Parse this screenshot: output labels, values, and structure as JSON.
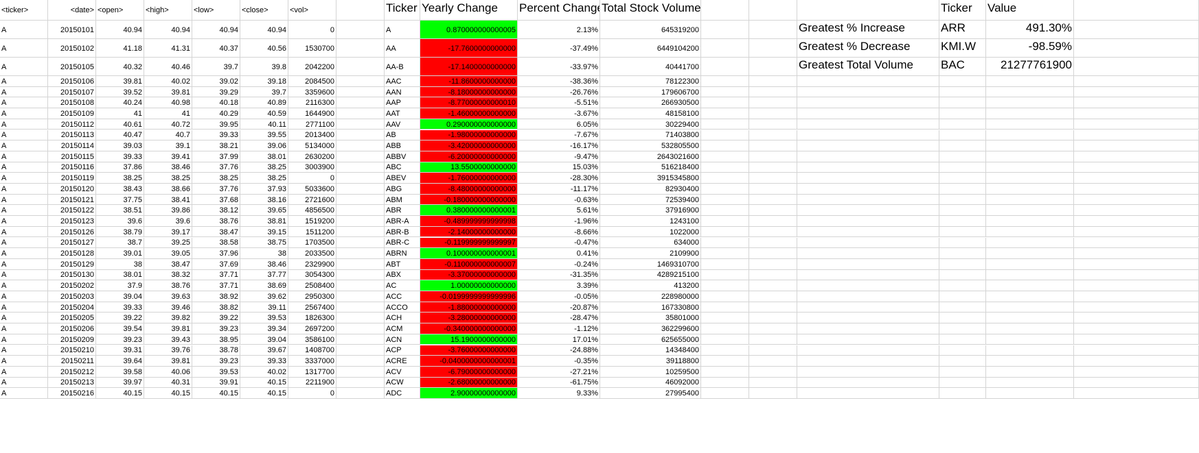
{
  "raw_data": {
    "headers": [
      "<ticker>",
      "<date>",
      "<open>",
      "<high>",
      "<low>",
      "<close>",
      "<vol>"
    ],
    "rows": [
      [
        "A",
        "20150101",
        "40.94",
        "40.94",
        "40.94",
        "40.94",
        "0"
      ],
      [
        "A",
        "20150102",
        "41.18",
        "41.31",
        "40.37",
        "40.56",
        "1530700"
      ],
      [
        "A",
        "20150105",
        "40.32",
        "40.46",
        "39.7",
        "39.8",
        "2042200"
      ],
      [
        "A",
        "20150106",
        "39.81",
        "40.02",
        "39.02",
        "39.18",
        "2084500"
      ],
      [
        "A",
        "20150107",
        "39.52",
        "39.81",
        "39.29",
        "39.7",
        "3359600"
      ],
      [
        "A",
        "20150108",
        "40.24",
        "40.98",
        "40.18",
        "40.89",
        "2116300"
      ],
      [
        "A",
        "20150109",
        "41",
        "41",
        "40.29",
        "40.59",
        "1644900"
      ],
      [
        "A",
        "20150112",
        "40.61",
        "40.72",
        "39.95",
        "40.11",
        "2771100"
      ],
      [
        "A",
        "20150113",
        "40.47",
        "40.7",
        "39.33",
        "39.55",
        "2013400"
      ],
      [
        "A",
        "20150114",
        "39.03",
        "39.1",
        "38.21",
        "39.06",
        "5134000"
      ],
      [
        "A",
        "20150115",
        "39.33",
        "39.41",
        "37.99",
        "38.01",
        "2630200"
      ],
      [
        "A",
        "20150116",
        "37.86",
        "38.46",
        "37.76",
        "38.25",
        "3003900"
      ],
      [
        "A",
        "20150119",
        "38.25",
        "38.25",
        "38.25",
        "38.25",
        "0"
      ],
      [
        "A",
        "20150120",
        "38.43",
        "38.66",
        "37.76",
        "37.93",
        "5033600"
      ],
      [
        "A",
        "20150121",
        "37.75",
        "38.41",
        "37.68",
        "38.16",
        "2721600"
      ],
      [
        "A",
        "20150122",
        "38.51",
        "39.86",
        "38.12",
        "39.65",
        "4856500"
      ],
      [
        "A",
        "20150123",
        "39.6",
        "39.6",
        "38.76",
        "38.81",
        "1519200"
      ],
      [
        "A",
        "20150126",
        "38.79",
        "39.17",
        "38.47",
        "39.15",
        "1511200"
      ],
      [
        "A",
        "20150127",
        "38.7",
        "39.25",
        "38.58",
        "38.75",
        "1703500"
      ],
      [
        "A",
        "20150128",
        "39.01",
        "39.05",
        "37.96",
        "38",
        "2033500"
      ],
      [
        "A",
        "20150129",
        "38",
        "38.47",
        "37.69",
        "38.46",
        "2329900"
      ],
      [
        "A",
        "20150130",
        "38.01",
        "38.32",
        "37.71",
        "37.77",
        "3054300"
      ],
      [
        "A",
        "20150202",
        "37.9",
        "38.76",
        "37.71",
        "38.69",
        "2508400"
      ],
      [
        "A",
        "20150203",
        "39.04",
        "39.63",
        "38.92",
        "39.62",
        "2950300"
      ],
      [
        "A",
        "20150204",
        "39.33",
        "39.46",
        "38.82",
        "39.11",
        "2567400"
      ],
      [
        "A",
        "20150205",
        "39.22",
        "39.82",
        "39.22",
        "39.53",
        "1826300"
      ],
      [
        "A",
        "20150206",
        "39.54",
        "39.81",
        "39.23",
        "39.34",
        "2697200"
      ],
      [
        "A",
        "20150209",
        "39.23",
        "39.43",
        "38.95",
        "39.04",
        "3586100"
      ],
      [
        "A",
        "20150210",
        "39.31",
        "39.76",
        "38.78",
        "39.67",
        "1408700"
      ],
      [
        "A",
        "20150211",
        "39.64",
        "39.81",
        "39.23",
        "39.33",
        "3337000"
      ],
      [
        "A",
        "20150212",
        "39.58",
        "40.06",
        "39.53",
        "40.02",
        "1317700"
      ],
      [
        "A",
        "20150213",
        "39.97",
        "40.31",
        "39.91",
        "40.15",
        "2211900"
      ],
      [
        "A",
        "20150216",
        "40.15",
        "40.15",
        "40.15",
        "40.15",
        "0"
      ]
    ]
  },
  "summary": {
    "headers": [
      "Ticker",
      "Yearly Change",
      "Percent Change",
      "Total Stock Volume"
    ],
    "rows": [
      {
        "ticker": "A",
        "change": "0.870000000000005",
        "pct": "2.13%",
        "vol": "645319200",
        "status": "up"
      },
      {
        "ticker": "AA",
        "change": "-17.7600000000000",
        "pct": "-37.49%",
        "vol": "6449104200",
        "status": "down"
      },
      {
        "ticker": "AA-B",
        "change": "-17.1400000000000",
        "pct": "-33.97%",
        "vol": "40441700",
        "status": "down"
      },
      {
        "ticker": "AAC",
        "change": "-11.8600000000000",
        "pct": "-38.36%",
        "vol": "78122300",
        "status": "down"
      },
      {
        "ticker": "AAN",
        "change": "-8.18000000000000",
        "pct": "-26.76%",
        "vol": "179606700",
        "status": "down"
      },
      {
        "ticker": "AAP",
        "change": "-8.77000000000010",
        "pct": "-5.51%",
        "vol": "266930500",
        "status": "down"
      },
      {
        "ticker": "AAT",
        "change": "-1.46000000000000",
        "pct": "-3.67%",
        "vol": "48158100",
        "status": "down"
      },
      {
        "ticker": "AAV",
        "change": "0.290000000000000",
        "pct": "6.05%",
        "vol": "30229400",
        "status": "up"
      },
      {
        "ticker": "AB",
        "change": "-1.98000000000000",
        "pct": "-7.67%",
        "vol": "71403800",
        "status": "down"
      },
      {
        "ticker": "ABB",
        "change": "-3.42000000000000",
        "pct": "-16.17%",
        "vol": "532805500",
        "status": "down"
      },
      {
        "ticker": "ABBV",
        "change": "-6.20000000000000",
        "pct": "-9.47%",
        "vol": "2643021600",
        "status": "down"
      },
      {
        "ticker": "ABC",
        "change": "13.5500000000000",
        "pct": "15.03%",
        "vol": "516218400",
        "status": "up"
      },
      {
        "ticker": "ABEV",
        "change": "-1.76000000000000",
        "pct": "-28.30%",
        "vol": "3915345800",
        "status": "down"
      },
      {
        "ticker": "ABG",
        "change": "-8.48000000000000",
        "pct": "-11.17%",
        "vol": "82930400",
        "status": "down"
      },
      {
        "ticker": "ABM",
        "change": "-0.180000000000000",
        "pct": "-0.63%",
        "vol": "72539400",
        "status": "down"
      },
      {
        "ticker": "ABR",
        "change": "0.380000000000001",
        "pct": "5.61%",
        "vol": "37916900",
        "status": "up"
      },
      {
        "ticker": "ABR-A",
        "change": "-0.489999999999998",
        "pct": "-1.96%",
        "vol": "1243100",
        "status": "down"
      },
      {
        "ticker": "ABR-B",
        "change": "-2.14000000000000",
        "pct": "-8.66%",
        "vol": "1022000",
        "status": "down"
      },
      {
        "ticker": "ABR-C",
        "change": "-0.119999999999997",
        "pct": "-0.47%",
        "vol": "634000",
        "status": "down"
      },
      {
        "ticker": "ABRN",
        "change": "0.100000000000001",
        "pct": "0.41%",
        "vol": "2109900",
        "status": "up"
      },
      {
        "ticker": "ABT",
        "change": "-0.110000000000007",
        "pct": "-0.24%",
        "vol": "1469310700",
        "status": "down"
      },
      {
        "ticker": "ABX",
        "change": "-3.37000000000000",
        "pct": "-31.35%",
        "vol": "4289215100",
        "status": "down"
      },
      {
        "ticker": "AC",
        "change": "1.00000000000000",
        "pct": "3.39%",
        "vol": "413200",
        "status": "up"
      },
      {
        "ticker": "ACC",
        "change": "-0.0199999999999996",
        "pct": "-0.05%",
        "vol": "228980000",
        "status": "down"
      },
      {
        "ticker": "ACCO",
        "change": "-1.88000000000000",
        "pct": "-20.87%",
        "vol": "167330800",
        "status": "down"
      },
      {
        "ticker": "ACH",
        "change": "-3.28000000000000",
        "pct": "-28.47%",
        "vol": "35801000",
        "status": "down"
      },
      {
        "ticker": "ACM",
        "change": "-0.340000000000000",
        "pct": "-1.12%",
        "vol": "362299600",
        "status": "down"
      },
      {
        "ticker": "ACN",
        "change": "15.1900000000000",
        "pct": "17.01%",
        "vol": "625655000",
        "status": "up"
      },
      {
        "ticker": "ACP",
        "change": "-3.76000000000000",
        "pct": "-24.88%",
        "vol": "14348400",
        "status": "down"
      },
      {
        "ticker": "ACRE",
        "change": "-0.0400000000000001",
        "pct": "-0.35%",
        "vol": "39118800",
        "status": "down"
      },
      {
        "ticker": "ACV",
        "change": "-6.79000000000000",
        "pct": "-27.21%",
        "vol": "10259500",
        "status": "down"
      },
      {
        "ticker": "ACW",
        "change": "-2.68000000000000",
        "pct": "-61.75%",
        "vol": "46092000",
        "status": "down"
      },
      {
        "ticker": "ADC",
        "change": "2.90000000000000",
        "pct": "9.33%",
        "vol": "27995400",
        "status": "up"
      }
    ]
  },
  "greatest": {
    "headers": [
      "Ticker",
      "Value"
    ],
    "rows": [
      {
        "label": "Greatest % Increase",
        "ticker": "ARR",
        "value": "491.30%"
      },
      {
        "label": "Greatest % Decrease",
        "ticker": "KMI.W",
        "value": "-98.59%"
      },
      {
        "label": "Greatest Total Volume",
        "ticker": "BAC",
        "value": "21277761900"
      }
    ]
  },
  "colors": {
    "positive": "#00ff00",
    "negative": "#ff0000",
    "gridline": "#d4d4d4"
  }
}
